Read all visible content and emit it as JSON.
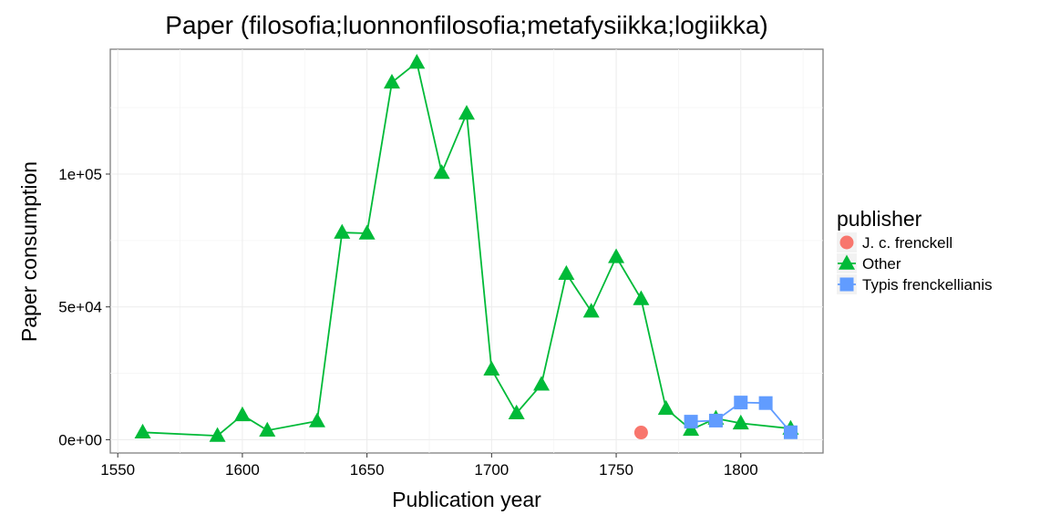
{
  "chart_data": {
    "type": "line",
    "title": "Paper (filosofia;luonnonfilosofia;metafysiikka;logiikka)",
    "xlabel": "Publication year",
    "ylabel": "Paper consumption",
    "xlim": [
      1547,
      1833
    ],
    "ylim": [
      -5000,
      147000
    ],
    "x_ticks": [
      1550,
      1600,
      1650,
      1700,
      1750,
      1800
    ],
    "x_tick_labels": [
      "1550",
      "1600",
      "1650",
      "1700",
      "1750",
      "1800"
    ],
    "y_ticks": [
      0,
      50000,
      100000
    ],
    "y_tick_labels": [
      "0e+00",
      "5e+04",
      "1e+05"
    ],
    "grid": true,
    "legend": {
      "title": "publisher",
      "position": "right"
    },
    "series": [
      {
        "name": "J. c. frenckell",
        "color": "#F8766D",
        "marker": "circle",
        "x": [
          1760
        ],
        "y": [
          2700
        ]
      },
      {
        "name": "Other",
        "color": "#00BA38",
        "marker": "triangle",
        "x": [
          1560,
          1590,
          1600,
          1610,
          1630,
          1640,
          1650,
          1660,
          1670,
          1680,
          1690,
          1700,
          1710,
          1720,
          1730,
          1740,
          1750,
          1760,
          1770,
          1780,
          1790,
          1800,
          1820
        ],
        "y": [
          2800,
          1500,
          9300,
          3500,
          7000,
          78000,
          77700,
          134500,
          142000,
          100500,
          122800,
          26500,
          10000,
          20800,
          62500,
          48300,
          68800,
          53000,
          11700,
          3800,
          8000,
          6200,
          4200
        ]
      },
      {
        "name": "Typis frenckellianis",
        "color": "#619CFF",
        "marker": "square",
        "x": [
          1780,
          1790,
          1800,
          1810,
          1820
        ],
        "y": [
          6800,
          7200,
          14000,
          13800,
          2800
        ]
      }
    ]
  }
}
